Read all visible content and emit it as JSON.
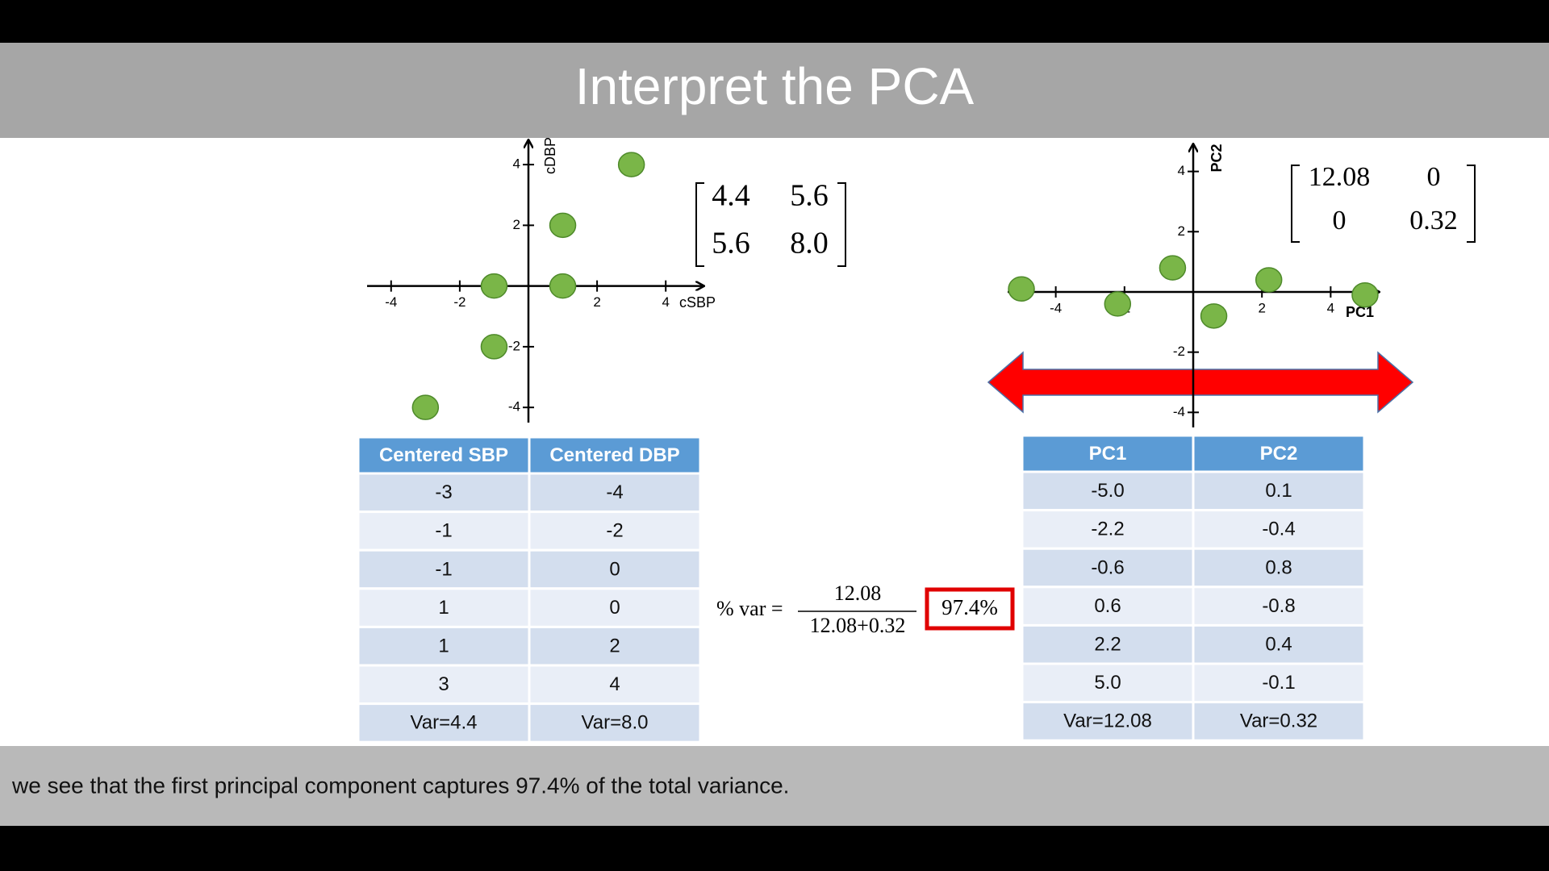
{
  "header": {
    "title": "Interpret the PCA"
  },
  "chart_data": [
    {
      "type": "scatter",
      "x_label": "cSBP",
      "y_label": "cDBP",
      "x": [
        -3,
        -1,
        -1,
        1,
        1,
        3
      ],
      "y": [
        -4,
        -2,
        0,
        0,
        2,
        4
      ],
      "color": "#7ab648",
      "xlim": [
        -4.7,
        5.1
      ],
      "ylim": [
        -4.5,
        4.8
      ],
      "xticks": [
        -4,
        -2,
        2,
        4
      ],
      "yticks": [
        -4,
        -2,
        2,
        4
      ]
    },
    {
      "type": "scatter",
      "x_label": "PC1",
      "y_label": "PC2",
      "x": [
        -5.0,
        -2.2,
        -0.6,
        0.6,
        2.2,
        5.0
      ],
      "y": [
        0.1,
        -0.4,
        0.8,
        -0.8,
        0.4,
        -0.1
      ],
      "color": "#7ab648",
      "xlim": [
        -5.4,
        5.4
      ],
      "ylim": [
        -4.5,
        4.9
      ],
      "xticks": [
        -4,
        -2,
        2,
        4
      ],
      "yticks": [
        -4,
        -2,
        2,
        4
      ]
    }
  ],
  "matrices": [
    {
      "rows": [
        [
          "4.4",
          "5.6"
        ],
        [
          "5.6",
          "8.0"
        ]
      ]
    },
    {
      "rows": [
        [
          "12.08",
          "0"
        ],
        [
          "0",
          "0.32"
        ]
      ]
    }
  ],
  "tables": [
    {
      "header": [
        "Centered SBP",
        "Centered DBP"
      ],
      "rows": [
        [
          "-3",
          "-4"
        ],
        [
          "-1",
          "-2"
        ],
        [
          "-1",
          "0"
        ],
        [
          "1",
          "0"
        ],
        [
          "1",
          "2"
        ],
        [
          "3",
          "4"
        ],
        [
          "Var=4.4",
          "Var=8.0"
        ]
      ]
    },
    {
      "header": [
        "PC1",
        "PC2"
      ],
      "rows": [
        [
          "-5.0",
          "0.1"
        ],
        [
          "-2.2",
          "-0.4"
        ],
        [
          "-0.6",
          "0.8"
        ],
        [
          "0.6",
          "-0.8"
        ],
        [
          "2.2",
          "0.4"
        ],
        [
          "5.0",
          "-0.1"
        ],
        [
          "Var=12.08",
          "Var=0.32"
        ]
      ]
    }
  ],
  "formula": {
    "lhs": "% var =",
    "numerator": "12.08",
    "denominator": "12.08+0.32",
    "result": "97.4%"
  },
  "caption": "we see that the first principal component captures 97.4% of the total variance."
}
